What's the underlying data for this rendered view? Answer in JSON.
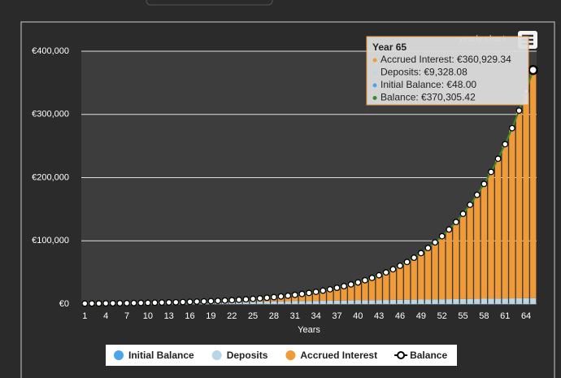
{
  "chart_data": {
    "type": "bar",
    "stacked": true,
    "menu_label": "yearly chart",
    "x_label": "Years",
    "categories": [
      1,
      null,
      null,
      4,
      null,
      null,
      7,
      null,
      null,
      10,
      null,
      null,
      13,
      null,
      null,
      16,
      null,
      null,
      19,
      null,
      null,
      22,
      null,
      null,
      25,
      null,
      null,
      28,
      null,
      null,
      31,
      null,
      null,
      34,
      null,
      null,
      37,
      null,
      null,
      40,
      null,
      null,
      43,
      null,
      null,
      46,
      null,
      null,
      49,
      null,
      null,
      52,
      null,
      null,
      55,
      null,
      null,
      58,
      null,
      null,
      61,
      null,
      null,
      64,
      null
    ],
    "ylim": [
      0,
      400000
    ],
    "yticks": [
      {
        "value": 0,
        "label": "€0"
      },
      {
        "value": 100000,
        "label": "€100,000"
      },
      {
        "value": 200000,
        "label": "€200,000"
      },
      {
        "value": 300000,
        "label": "€300,000"
      },
      {
        "value": 400000,
        "label": "€400,000"
      }
    ],
    "grid": true,
    "series": [
      {
        "name": "Initial Balance",
        "color": "#4ea4e8",
        "values": [
          48,
          48,
          48,
          48,
          48,
          48,
          48,
          48,
          48,
          48,
          48,
          48,
          48,
          48,
          48,
          48,
          48,
          48,
          48,
          48,
          48,
          48,
          48,
          48,
          48,
          48,
          48,
          48,
          48,
          48,
          48,
          48,
          48,
          48,
          48,
          48,
          48,
          48,
          48,
          48,
          48,
          48,
          48,
          48,
          48,
          48,
          48,
          48,
          48,
          48,
          48,
          48,
          48,
          48,
          48,
          48,
          48,
          48,
          48,
          48,
          48,
          48,
          48,
          48,
          48
        ]
      },
      {
        "name": "Deposits",
        "color": "#b8d6e8",
        "values": [
          143.5,
          287,
          430.5,
          574,
          717.5,
          861,
          1004.5,
          1148,
          1291.5,
          1435,
          1578.5,
          1722,
          1865.5,
          2009,
          2152.5,
          2296,
          2439.5,
          2583,
          2726.5,
          2870,
          3013.5,
          3157,
          3300.5,
          3444,
          3587.5,
          3731,
          3874.5,
          4018,
          4161.5,
          4305,
          4448.5,
          4592,
          4735.5,
          4879,
          5022.5,
          5166,
          5309.5,
          5453,
          5596.5,
          5740,
          5883.5,
          6027,
          6170.5,
          6314,
          6457.5,
          6601,
          6744.5,
          6888,
          7031.5,
          7175,
          7318.5,
          7462,
          7605.5,
          7749,
          7892.5,
          8036,
          8179.5,
          8323,
          8466.5,
          8610,
          8753.5,
          8897,
          9040.5,
          9184,
          9328.08
        ]
      },
      {
        "name": "Accrued Interest",
        "color": "#f19a38",
        "values": [
          639.5,
          579,
          526.5,
          484,
          450.5,
          429,
          419.5,
          423,
          441.5,
          476,
          528.5,
          600,
          693.5,
          811,
          953.5,
          1126,
          1329.5,
          1568,
          1843.5,
          2162,
          2526.5,
          2942,
          3413.5,
          3946,
          4546.5,
          5221,
          5977.5,
          6824,
          7769.5,
          8824,
          9998.5,
          11304,
          12754.5,
          14366,
          16151.5,
          18130,
          20320.5,
          22745,
          25426.5,
          28390,
          31664.5,
          35280,
          39271.5,
          43678,
          48538.5,
          53899,
          59810.5,
          66327,
          73509.5,
          81426,
          90145.5,
          99753,
          110337.5,
          121993,
          134830.5,
          148965,
          164522.5,
          181655,
          200515.5,
          221276,
          244121.5,
          269271,
          296948.5,
          327409,
          360929.34
        ]
      },
      {
        "name": "Balance",
        "color": "#3a8a2a",
        "type": "line",
        "values": [
          831,
          914,
          1005,
          1106,
          1216,
          1338,
          1472,
          1619,
          1781,
          1959,
          2155,
          2370,
          2607,
          2868,
          3154,
          3470,
          3817,
          4199,
          4618,
          5080,
          5588,
          6147,
          6762,
          7438,
          8182,
          9000,
          9900,
          10890,
          11979,
          13177,
          14495,
          15944,
          17538,
          19293,
          21222,
          23344,
          25678,
          28246,
          31071,
          34178,
          37596,
          41355,
          45490,
          50040,
          55044,
          60548,
          66603,
          73263,
          80589,
          88649,
          97512,
          107263,
          117991,
          129790,
          142771,
          157049,
          172750,
          190026,
          209030,
          229934,
          252923,
          278216,
          306037,
          336641,
          370305.42
        ]
      }
    ],
    "tooltip": {
      "title": "Year 65",
      "lines": [
        "Accrued Interest: €360,929.34",
        "Deposits: €9,328.08",
        "Initial Balance: €48.00",
        "Balance: €370,305.42"
      ]
    }
  }
}
